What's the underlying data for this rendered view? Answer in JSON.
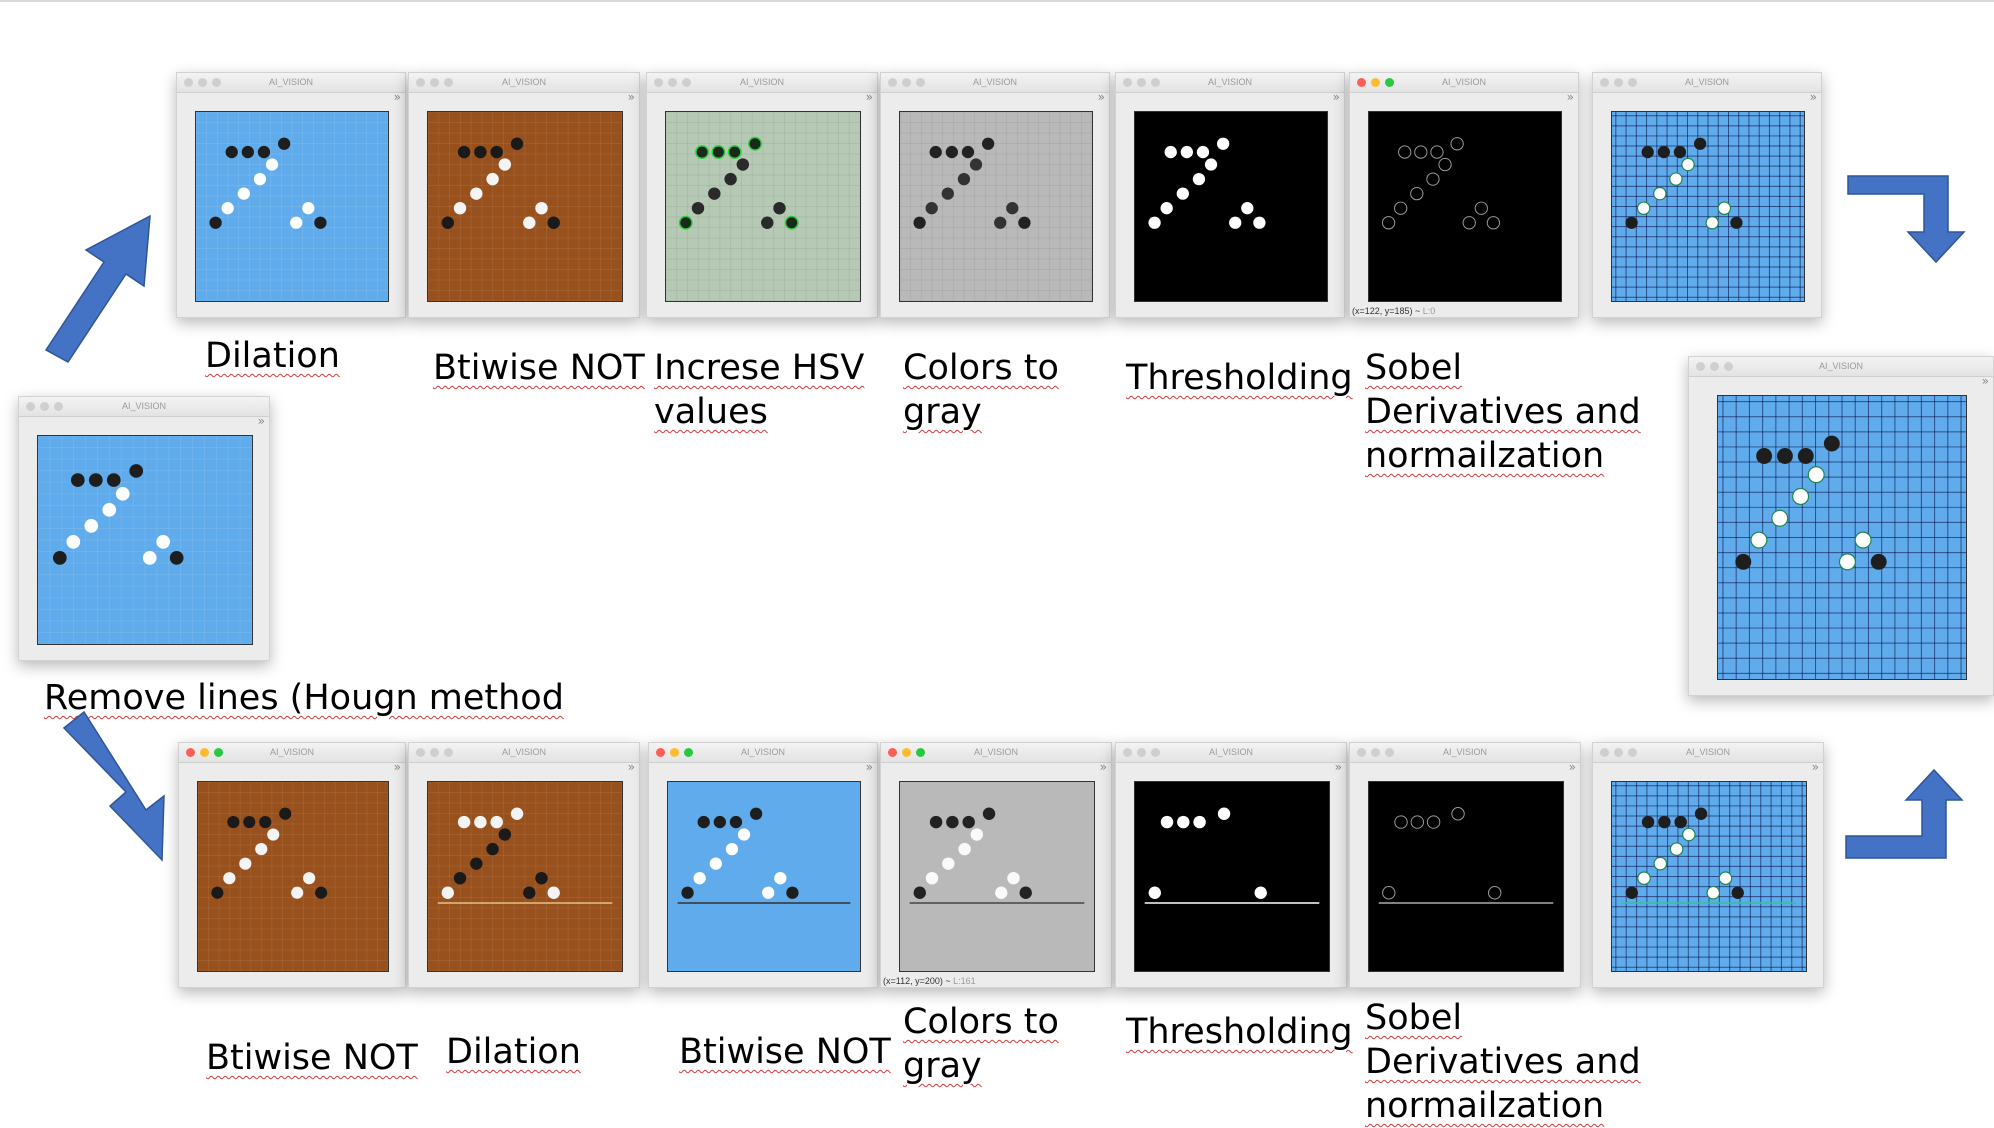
{
  "window_title": "AI_VISION",
  "chevron": "»",
  "colors": {
    "blue": "#5fabeb",
    "brown": "#98501c",
    "sage": "#b5c9b5",
    "gray": "#b9b9b9",
    "black": "#000000",
    "arrow": "#4472c4",
    "underline": "#d23a3a"
  },
  "source_window": {
    "title": "AI_VISION",
    "image": "blue"
  },
  "result_window": {
    "title": "AI_VISION",
    "image": "blue-grid"
  },
  "source_caption": "Remove lines (Hougn method",
  "top_row": [
    {
      "title": "AI_VISION",
      "image": "blue",
      "label_lines": [
        "Dilation"
      ]
    },
    {
      "title": "AI_VISION",
      "image": "brown",
      "label_lines": [
        "Btiwise NOT"
      ]
    },
    {
      "title": "AI_VISION",
      "image": "sage",
      "label_lines": [
        "Increse HSV",
        "values"
      ]
    },
    {
      "title": "AI_VISION",
      "image": "gray",
      "label_lines": [
        "Colors to",
        "gray"
      ]
    },
    {
      "title": "AI_VISION",
      "image": "threshold",
      "label_lines": [
        "Thresholding"
      ]
    },
    {
      "title": "AI_VISION",
      "image": "sobel",
      "label_lines": [
        "Sobel",
        "Derivatives and",
        "normailzation"
      ],
      "status_main": "(x=122, y=185) ~",
      "status_sub": "L:0"
    },
    {
      "title": "AI_VISION",
      "image": "blue-grid",
      "label_lines": []
    }
  ],
  "bottom_row": [
    {
      "title": "AI_VISION",
      "image": "brown",
      "label_lines": [
        "Btiwise NOT"
      ]
    },
    {
      "title": "AI_VISION",
      "image": "brown-line",
      "label_lines": [
        "Dilation"
      ]
    },
    {
      "title": "AI_VISION",
      "image": "blue-line",
      "label_lines": [
        "Btiwise NOT"
      ]
    },
    {
      "title": "AI_VISION",
      "image": "gray-line",
      "label_lines": [
        "Colors to",
        "gray"
      ],
      "status_main": "(x=112, y=200) ~",
      "status_sub": "L:161"
    },
    {
      "title": "AI_VISION",
      "image": "threshold-line",
      "label_lines": [
        "Thresholding"
      ]
    },
    {
      "title": "AI_VISION",
      "image": "sobel-line",
      "label_lines": [
        "Sobel",
        "Derivatives and",
        "normailzation"
      ]
    },
    {
      "title": "AI_VISION",
      "image": "blue-grid-line",
      "label_lines": []
    }
  ]
}
